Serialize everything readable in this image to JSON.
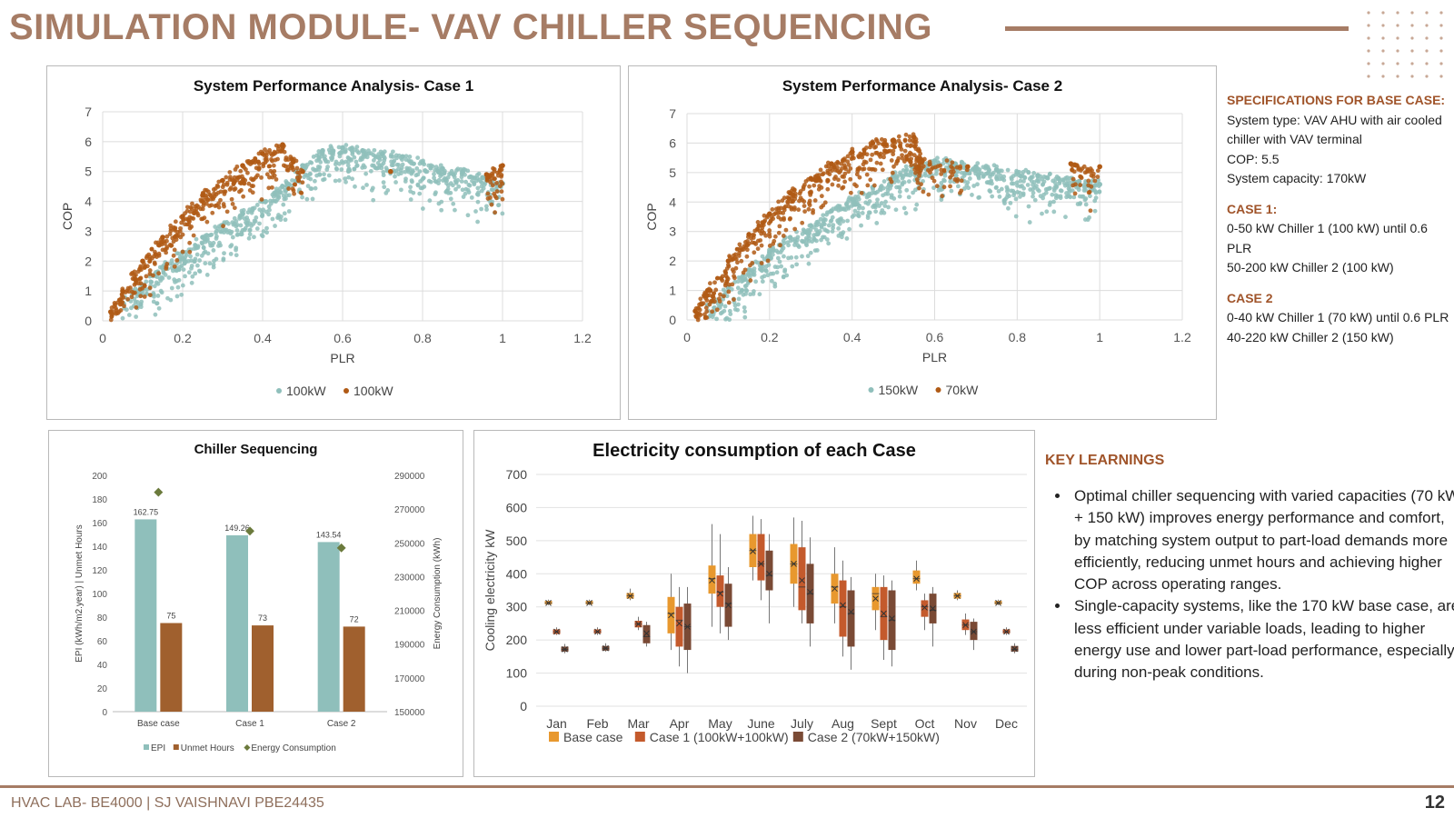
{
  "header": {
    "title": "SIMULATION MODULE- VAV CHILLER SEQUENCING"
  },
  "footer": {
    "text": "HVAC LAB- BE4000 | SJ VAISHNAVI PBE24435",
    "page": "12"
  },
  "colors": {
    "accent": "#a67c65",
    "teal": "#8fbfbb",
    "brown": "#b05a15",
    "heading": "#a0542a",
    "base": "#e8982e",
    "case1": "#c45a2c",
    "case2": "#7a4a35"
  },
  "specs": {
    "heading": "SPECIFICATIONS FOR BASE CASE:",
    "base_lines": [
      "System type: VAV AHU with air cooled chiller with VAV terminal",
      "COP: 5.5",
      "System capacity: 170kW"
    ],
    "case1_heading": "CASE 1:",
    "case1_lines": [
      "0-50 kW Chiller 1 (100 kW) until 0.6 PLR",
      "50-200 kW Chiller 2 (100 kW)"
    ],
    "case2_heading": "CASE 2",
    "case2_lines": [
      "0-40 kW Chiller 1 (70 kW) until 0.6 PLR",
      "40-220 kW Chiller 2 (150 kW)"
    ]
  },
  "key_learnings": {
    "heading": "KEY LEARNINGS",
    "items": [
      "Optimal chiller sequencing with varied capacities (70 kW + 150 kW) improves energy performance and comfort, by matching system output to part-load demands more efficiently, reducing unmet hours and achieving higher COP across operating ranges.",
      "Single-capacity systems, like the 170 kW base case, are less efficient under variable loads, leading to higher energy use and lower part-load performance, especially during non-peak conditions."
    ]
  },
  "chart_data": [
    {
      "type": "scatter",
      "title": "System Performance Analysis- Case 1",
      "xlabel": "PLR",
      "ylabel": "COP",
      "xlim": [
        0,
        1.2
      ],
      "ylim": [
        0,
        7
      ],
      "xticks": [
        "0",
        "0.2",
        "0.4",
        "0.6",
        "0.8",
        "1",
        "1.2"
      ],
      "yticks": [
        "0",
        "1",
        "2",
        "3",
        "4",
        "5",
        "6",
        "7"
      ],
      "legend_position": "bottom",
      "series": [
        {
          "name": "100kW",
          "color": "#8fbfbb",
          "x": [
            0.05,
            0.1,
            0.15,
            0.2,
            0.25,
            0.3,
            0.35,
            0.4,
            0.45,
            0.5,
            0.55,
            0.6,
            0.65,
            0.7,
            0.75,
            0.8,
            0.85,
            0.9,
            0.95,
            1.0
          ],
          "y": [
            0.6,
            1.2,
            1.8,
            2.3,
            2.8,
            3.2,
            3.6,
            4.0,
            4.5,
            5.2,
            5.7,
            5.8,
            5.7,
            5.6,
            5.5,
            5.3,
            5.1,
            5.0,
            4.8,
            4.6
          ]
        },
        {
          "name": "100kW",
          "color": "#b05a15",
          "x": [
            0.02,
            0.05,
            0.1,
            0.15,
            0.2,
            0.25,
            0.3,
            0.35,
            0.4,
            0.45,
            0.5,
            0.72,
            0.96,
            1.0
          ],
          "y": [
            0.3,
            1.0,
            2.0,
            2.8,
            3.5,
            4.2,
            4.7,
            5.2,
            5.6,
            5.9,
            5.0,
            5.0,
            4.9,
            5.2
          ]
        }
      ]
    },
    {
      "type": "scatter",
      "title": "System Performance Analysis- Case 2",
      "xlabel": "PLR",
      "ylabel": "COP",
      "xlim": [
        0,
        1.2
      ],
      "ylim": [
        0,
        7
      ],
      "xticks": [
        "0",
        "0.2",
        "0.4",
        "0.6",
        "0.8",
        "1",
        "1.2"
      ],
      "yticks": [
        "0",
        "1",
        "2",
        "3",
        "4",
        "5",
        "6",
        "7"
      ],
      "legend_position": "bottom",
      "series": [
        {
          "name": "150kW",
          "color": "#8fbfbb",
          "x": [
            0.05,
            0.1,
            0.15,
            0.2,
            0.25,
            0.3,
            0.35,
            0.4,
            0.45,
            0.5,
            0.55,
            0.6,
            0.65,
            0.7,
            0.75,
            0.8,
            0.85,
            0.9,
            0.95,
            1.0
          ],
          "y": [
            0.5,
            1.1,
            1.7,
            2.3,
            2.8,
            3.2,
            3.7,
            4.1,
            4.5,
            4.9,
            5.2,
            5.4,
            5.3,
            5.2,
            5.1,
            5.0,
            4.9,
            4.8,
            4.7,
            4.6
          ]
        },
        {
          "name": "70kW",
          "color": "#b05a15",
          "x": [
            0.02,
            0.05,
            0.1,
            0.15,
            0.2,
            0.25,
            0.3,
            0.35,
            0.4,
            0.45,
            0.5,
            0.55,
            0.57,
            0.68,
            0.93,
            1.0
          ],
          "y": [
            0.3,
            1.0,
            2.0,
            2.9,
            3.6,
            4.3,
            4.8,
            5.3,
            5.7,
            6.0,
            6.1,
            6.2,
            5.4,
            5.2,
            5.3,
            5.2
          ]
        }
      ]
    },
    {
      "type": "bar",
      "title": "Chiller Sequencing",
      "categories": [
        "Base case",
        "Case 1",
        "Case 2"
      ],
      "ylabel": "EPI (kWh/m2.year) | Unmet Hours",
      "y2label": "Energy Consumption (kWh)",
      "ylim": [
        0,
        200
      ],
      "y2lim": [
        150000,
        290000
      ],
      "yticks": [
        "0",
        "20",
        "40",
        "60",
        "80",
        "100",
        "120",
        "140",
        "160",
        "180",
        "200"
      ],
      "y2ticks": [
        "150000",
        "170000",
        "190000",
        "210000",
        "230000",
        "250000",
        "270000",
        "290000"
      ],
      "legend_position": "bottom",
      "series": [
        {
          "name": "EPI",
          "color": "#8fbfbb",
          "values": [
            162.75,
            149.26,
            143.54
          ],
          "labels": [
            "162.75",
            "149.26",
            "143.54"
          ]
        },
        {
          "name": "Unmet Hours",
          "color": "#a0602e",
          "values": [
            75,
            73,
            72
          ],
          "labels": [
            "75",
            "73",
            "72"
          ]
        },
        {
          "name": "Energy Consumption",
          "color": "#6b7a3c",
          "axis": "right",
          "values": [
            280000,
            257000,
            247000
          ]
        }
      ]
    },
    {
      "type": "box",
      "title": "Electricity consumption of each Case",
      "ylabel": "Cooling electricity kW",
      "ylim": [
        0,
        700
      ],
      "yticks": [
        "0",
        "100",
        "200",
        "300",
        "400",
        "500",
        "600",
        "700"
      ],
      "categories": [
        "Jan",
        "Feb",
        "Mar",
        "Apr",
        "May",
        "June",
        "July",
        "Aug",
        "Sept",
        "Oct",
        "Nov",
        "Dec"
      ],
      "legend_position": "bottom",
      "series": [
        {
          "name": "Base case",
          "color": "#e8982e",
          "boxes": [
            {
              "min": 305,
              "q1": 308,
              "median": 312,
              "q3": 318,
              "max": 322,
              "mean": 312
            },
            {
              "min": 305,
              "q1": 308,
              "median": 312,
              "q3": 318,
              "max": 322,
              "mean": 312
            },
            {
              "min": 320,
              "q1": 325,
              "median": 333,
              "q3": 342,
              "max": 355,
              "mean": 333
            },
            {
              "min": 170,
              "q1": 220,
              "median": 280,
              "q3": 330,
              "max": 400,
              "mean": 275
            },
            {
              "min": 240,
              "q1": 340,
              "median": 385,
              "q3": 425,
              "max": 550,
              "mean": 380
            },
            {
              "min": 380,
              "q1": 420,
              "median": 470,
              "q3": 520,
              "max": 575,
              "mean": 468
            },
            {
              "min": 300,
              "q1": 370,
              "median": 430,
              "q3": 490,
              "max": 570,
              "mean": 430
            },
            {
              "min": 250,
              "q1": 310,
              "median": 360,
              "q3": 400,
              "max": 480,
              "mean": 355
            },
            {
              "min": 230,
              "q1": 290,
              "median": 340,
              "q3": 360,
              "max": 400,
              "mean": 325
            },
            {
              "min": 350,
              "q1": 370,
              "median": 385,
              "q3": 410,
              "max": 440,
              "mean": 385
            },
            {
              "min": 320,
              "q1": 325,
              "median": 333,
              "q3": 342,
              "max": 350,
              "mean": 333
            },
            {
              "min": 305,
              "q1": 308,
              "median": 312,
              "q3": 318,
              "max": 322,
              "mean": 312
            }
          ]
        },
        {
          "name": "Case 1 (100kW+100kW)",
          "color": "#c45a2c",
          "boxes": [
            {
              "min": 215,
              "q1": 218,
              "median": 225,
              "q3": 232,
              "max": 238,
              "mean": 225
            },
            {
              "min": 215,
              "q1": 220,
              "median": 225,
              "q3": 232,
              "max": 238,
              "mean": 225
            },
            {
              "min": 230,
              "q1": 238,
              "median": 248,
              "q3": 258,
              "max": 270,
              "mean": 248
            },
            {
              "min": 120,
              "q1": 180,
              "median": 260,
              "q3": 300,
              "max": 360,
              "mean": 250
            },
            {
              "min": 220,
              "q1": 300,
              "median": 345,
              "q3": 395,
              "max": 520,
              "mean": 340
            },
            {
              "min": 320,
              "q1": 380,
              "median": 430,
              "q3": 520,
              "max": 565,
              "mean": 430
            },
            {
              "min": 250,
              "q1": 290,
              "median": 360,
              "q3": 480,
              "max": 560,
              "mean": 380
            },
            {
              "min": 150,
              "q1": 210,
              "median": 300,
              "q3": 380,
              "max": 440,
              "mean": 305
            },
            {
              "min": 140,
              "q1": 200,
              "median": 270,
              "q3": 360,
              "max": 395,
              "mean": 280
            },
            {
              "min": 230,
              "q1": 270,
              "median": 300,
              "q3": 320,
              "max": 340,
              "mean": 298
            },
            {
              "min": 215,
              "q1": 230,
              "median": 245,
              "q3": 262,
              "max": 280,
              "mean": 245
            },
            {
              "min": 215,
              "q1": 220,
              "median": 225,
              "q3": 232,
              "max": 238,
              "mean": 225
            }
          ]
        },
        {
          "name": "Case 2 (70kW+150kW)",
          "color": "#7a4a35",
          "boxes": [
            {
              "min": 160,
              "q1": 165,
              "median": 172,
              "q3": 180,
              "max": 188,
              "mean": 172
            },
            {
              "min": 165,
              "q1": 168,
              "median": 175,
              "q3": 182,
              "max": 190,
              "mean": 175
            },
            {
              "min": 180,
              "q1": 190,
              "median": 210,
              "q3": 245,
              "max": 255,
              "mean": 220
            },
            {
              "min": 100,
              "q1": 170,
              "median": 240,
              "q3": 310,
              "max": 360,
              "mean": 240
            },
            {
              "min": 200,
              "q1": 240,
              "median": 310,
              "q3": 370,
              "max": 420,
              "mean": 305
            },
            {
              "min": 250,
              "q1": 350,
              "median": 395,
              "q3": 470,
              "max": 520,
              "mean": 400
            },
            {
              "min": 180,
              "q1": 250,
              "median": 340,
              "q3": 430,
              "max": 510,
              "mean": 345
            },
            {
              "min": 110,
              "q1": 180,
              "median": 280,
              "q3": 350,
              "max": 390,
              "mean": 285
            },
            {
              "min": 120,
              "q1": 170,
              "median": 260,
              "q3": 350,
              "max": 380,
              "mean": 265
            },
            {
              "min": 180,
              "q1": 250,
              "median": 290,
              "q3": 340,
              "max": 360,
              "mean": 295
            },
            {
              "min": 170,
              "q1": 200,
              "median": 225,
              "q3": 255,
              "max": 265,
              "mean": 225
            },
            {
              "min": 160,
              "q1": 165,
              "median": 172,
              "q3": 182,
              "max": 190,
              "mean": 173
            }
          ]
        }
      ]
    }
  ]
}
